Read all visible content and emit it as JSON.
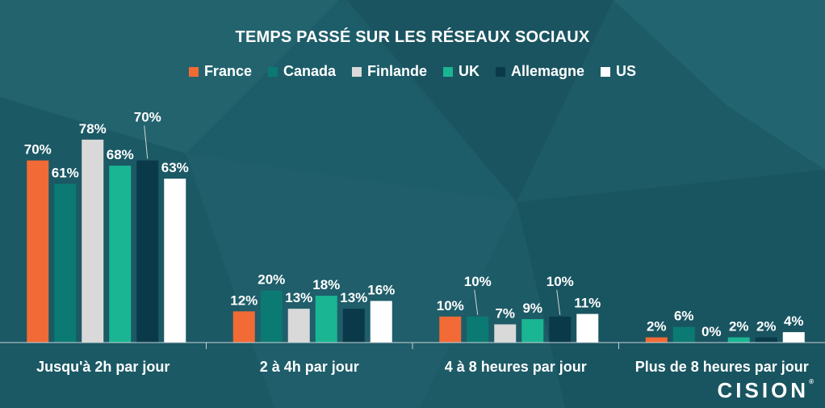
{
  "chart_data": {
    "type": "bar",
    "title": "TEMPS PASSÉ SUR LES RÉSEAUX SOCIAUX",
    "categories": [
      "Jusqu'à 2h par jour",
      "2 à 4h par jour",
      "4 à 8 heures par jour",
      "Plus de 8 heures par jour"
    ],
    "series": [
      {
        "name": "France",
        "color": "#f26a35",
        "values": [
          70,
          12,
          10,
          2
        ],
        "labels": [
          "70%",
          "12%",
          "10%",
          "2%"
        ]
      },
      {
        "name": "Canada",
        "color": "#0b7a73",
        "values": [
          61,
          20,
          10,
          6
        ],
        "labels": [
          "61%",
          "20%",
          "10%",
          "6%"
        ]
      },
      {
        "name": "Finlande",
        "color": "#d9d9d9",
        "values": [
          78,
          13,
          7,
          0
        ],
        "labels": [
          "78%",
          "13%",
          "7%",
          "0%"
        ]
      },
      {
        "name": "UK",
        "color": "#1ab592",
        "values": [
          68,
          18,
          9,
          2
        ],
        "labels": [
          "68%",
          "18%",
          "9%",
          "2%"
        ]
      },
      {
        "name": "Allemagne",
        "color": "#0a3a4a",
        "values": [
          70,
          13,
          10,
          2
        ],
        "labels": [
          "70%",
          "13%",
          "10%",
          "2%"
        ]
      },
      {
        "name": "US",
        "color": "#ffffff",
        "values": [
          63,
          16,
          11,
          4
        ],
        "labels": [
          "63%",
          "16%",
          "11%",
          "4%"
        ]
      }
    ],
    "ylim": [
      0,
      100
    ],
    "legend_position": "top-center",
    "grid": false
  },
  "branding": {
    "logo_text": "CISION",
    "logo_mark": "®"
  },
  "colors": {
    "background": "#1b5a66",
    "text": "#ffffff"
  }
}
